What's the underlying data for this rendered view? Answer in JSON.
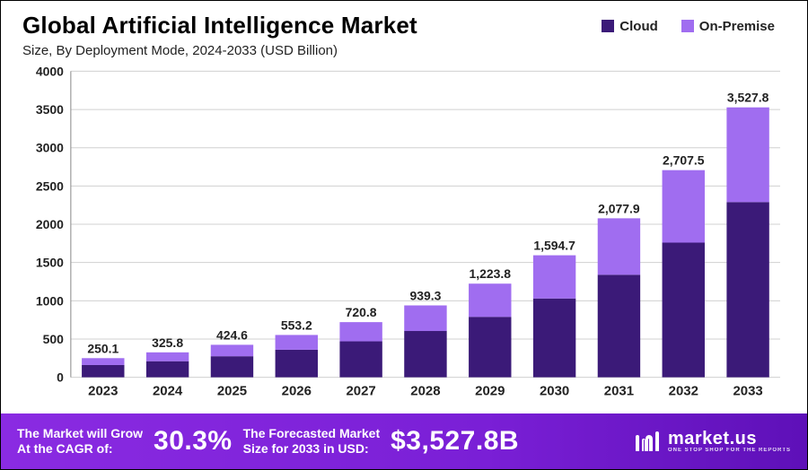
{
  "title": "Global Artificial Intelligence Market",
  "subtitle": "Size, By Deployment Mode, 2024-2033 (USD Billion)",
  "legend": [
    {
      "label": "Cloud",
      "color": "#3b1a78"
    },
    {
      "label": "On-Premise",
      "color": "#a06df0"
    }
  ],
  "chart": {
    "type": "stacked-bar",
    "background_color": "#ffffff",
    "grid_color": "#d0d0d0",
    "axis_color": "#888888",
    "ylim": [
      0,
      4000
    ],
    "ytick_step": 500,
    "yticks": [
      0,
      500,
      1000,
      1500,
      2000,
      2500,
      3000,
      3500,
      4000
    ],
    "label_fontsize": 14,
    "label_fontweight": 700,
    "bar_width_ratio": 0.66,
    "series_colors": {
      "cloud": "#3b1a78",
      "on_premise": "#a06df0"
    },
    "categories": [
      "2023",
      "2024",
      "2025",
      "2026",
      "2027",
      "2028",
      "2029",
      "2030",
      "2031",
      "2032",
      "2033"
    ],
    "totals": [
      250.1,
      325.8,
      424.6,
      553.2,
      720.8,
      939.3,
      1223.8,
      1594.7,
      2077.9,
      2707.5,
      3527.8
    ],
    "total_labels": [
      "250.1",
      "325.8",
      "424.6",
      "553.2",
      "720.8",
      "939.3",
      "1,223.8",
      "1,594.7",
      "2,077.9",
      "2,707.5",
      "3,527.8"
    ],
    "cloud_values": [
      160,
      210,
      275,
      360,
      470,
      605,
      790,
      1030,
      1340,
      1760,
      2290
    ],
    "on_premise_values": [
      90.1,
      115.8,
      149.6,
      193.2,
      250.8,
      334.3,
      433.8,
      564.7,
      737.9,
      947.5,
      1237.8
    ]
  },
  "footer": {
    "cagr_label_line1": "The Market will Grow",
    "cagr_label_line2": "At the CAGR of:",
    "cagr_value": "30.3%",
    "forecast_label_line1": "The Forecasted Market",
    "forecast_label_line2": "Size for 2033 in USD:",
    "forecast_value": "$3,527.8B",
    "brand_name": "market.us",
    "brand_tag": "ONE STOP SHOP FOR THE REPORTS"
  }
}
